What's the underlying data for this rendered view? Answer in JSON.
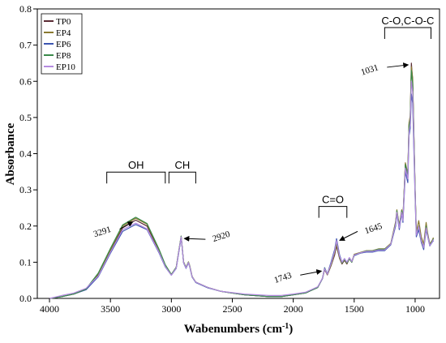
{
  "chart_data": {
    "type": "line",
    "xlabel": "Wabenumbers (cm",
    "xlabel_sup": "-1",
    "xlabel_close": ")",
    "ylabel": "Absorbance",
    "xlim": [
      4100,
      800
    ],
    "ylim": [
      0,
      0.8
    ],
    "x_reversed": true,
    "grid": false,
    "legend_position": "top-left",
    "xticks": [
      4000,
      3500,
      3000,
      2500,
      2000,
      1500,
      1000
    ],
    "yticks": [
      0.0,
      0.1,
      0.2,
      0.3,
      0.4,
      0.5,
      0.6,
      0.7,
      0.8
    ],
    "ytick_labels": [
      "0.0",
      "0.1",
      "0.2",
      "0.3",
      "0.4",
      "0.5",
      "0.6",
      "0.7",
      "0.8"
    ],
    "series": [
      {
        "name": "TP0",
        "color": "#5a2a34",
        "x": [
          4000,
          3900,
          3800,
          3700,
          3600,
          3500,
          3400,
          3300,
          3291,
          3200,
          3100,
          3050,
          3000,
          2960,
          2920,
          2900,
          2880,
          2860,
          2850,
          2830,
          2800,
          2700,
          2600,
          2400,
          2200,
          2100,
          2000,
          1900,
          1800,
          1760,
          1743,
          1720,
          1690,
          1660,
          1645,
          1620,
          1600,
          1580,
          1560,
          1540,
          1520,
          1500,
          1450,
          1400,
          1350,
          1300,
          1250,
          1200,
          1160,
          1150,
          1130,
          1110,
          1100,
          1080,
          1060,
          1050,
          1040,
          1031,
          1020,
          1000,
          990,
          970,
          950,
          930,
          910,
          900,
          880,
          860,
          850
        ],
        "y": [
          0.0,
          0.005,
          0.012,
          0.025,
          0.065,
          0.13,
          0.195,
          0.215,
          0.216,
          0.2,
          0.13,
          0.09,
          0.065,
          0.085,
          0.17,
          0.1,
          0.085,
          0.1,
          0.09,
          0.06,
          0.045,
          0.03,
          0.02,
          0.01,
          0.005,
          0.005,
          0.01,
          0.015,
          0.03,
          0.055,
          0.08,
          0.065,
          0.09,
          0.12,
          0.145,
          0.11,
          0.095,
          0.105,
          0.095,
          0.11,
          0.1,
          0.12,
          0.125,
          0.13,
          0.13,
          0.135,
          0.135,
          0.15,
          0.21,
          0.24,
          0.2,
          0.24,
          0.22,
          0.37,
          0.34,
          0.48,
          0.5,
          0.65,
          0.6,
          0.3,
          0.18,
          0.2,
          0.16,
          0.14,
          0.2,
          0.18,
          0.15,
          0.16,
          0.165
        ]
      },
      {
        "name": "EP4",
        "color": "#8a7a30",
        "x": [
          4000,
          3900,
          3800,
          3700,
          3600,
          3500,
          3400,
          3300,
          3291,
          3200,
          3100,
          3050,
          3000,
          2960,
          2920,
          2900,
          2880,
          2860,
          2850,
          2830,
          2800,
          2700,
          2600,
          2400,
          2200,
          2100,
          2000,
          1900,
          1800,
          1760,
          1743,
          1720,
          1690,
          1660,
          1645,
          1620,
          1600,
          1580,
          1560,
          1540,
          1520,
          1500,
          1450,
          1400,
          1350,
          1300,
          1250,
          1200,
          1160,
          1150,
          1130,
          1110,
          1100,
          1080,
          1060,
          1050,
          1040,
          1031,
          1020,
          1000,
          990,
          970,
          950,
          930,
          910,
          900,
          880,
          860,
          850
        ],
        "y": [
          0.0,
          0.005,
          0.012,
          0.025,
          0.068,
          0.135,
          0.2,
          0.22,
          0.221,
          0.205,
          0.133,
          0.092,
          0.066,
          0.086,
          0.172,
          0.101,
          0.086,
          0.101,
          0.091,
          0.061,
          0.045,
          0.03,
          0.02,
          0.01,
          0.005,
          0.005,
          0.01,
          0.015,
          0.03,
          0.056,
          0.082,
          0.066,
          0.092,
          0.125,
          0.15,
          0.112,
          0.097,
          0.107,
          0.097,
          0.112,
          0.102,
          0.122,
          0.127,
          0.132,
          0.132,
          0.137,
          0.137,
          0.152,
          0.212,
          0.245,
          0.202,
          0.245,
          0.222,
          0.375,
          0.345,
          0.485,
          0.505,
          0.64,
          0.61,
          0.305,
          0.182,
          0.215,
          0.17,
          0.15,
          0.21,
          0.185,
          0.15,
          0.16,
          0.168
        ]
      },
      {
        "name": "EP6",
        "color": "#3c55b0",
        "x": [
          4000,
          3900,
          3800,
          3700,
          3600,
          3500,
          3400,
          3300,
          3291,
          3200,
          3100,
          3050,
          3000,
          2960,
          2920,
          2900,
          2880,
          2860,
          2850,
          2830,
          2800,
          2700,
          2600,
          2400,
          2200,
          2100,
          2000,
          1900,
          1800,
          1760,
          1743,
          1720,
          1690,
          1660,
          1645,
          1620,
          1600,
          1580,
          1560,
          1540,
          1520,
          1500,
          1450,
          1400,
          1350,
          1300,
          1250,
          1200,
          1160,
          1150,
          1130,
          1110,
          1100,
          1080,
          1060,
          1050,
          1040,
          1031,
          1020,
          1000,
          990,
          970,
          950,
          930,
          910,
          900,
          880,
          860,
          850
        ],
        "y": [
          0.0,
          0.005,
          0.012,
          0.024,
          0.06,
          0.125,
          0.185,
          0.203,
          0.204,
          0.19,
          0.125,
          0.087,
          0.064,
          0.083,
          0.168,
          0.098,
          0.083,
          0.098,
          0.088,
          0.059,
          0.044,
          0.029,
          0.02,
          0.01,
          0.005,
          0.005,
          0.01,
          0.015,
          0.03,
          0.055,
          0.085,
          0.068,
          0.1,
          0.135,
          0.165,
          0.12,
          0.1,
          0.11,
          0.1,
          0.112,
          0.102,
          0.118,
          0.125,
          0.128,
          0.128,
          0.132,
          0.132,
          0.148,
          0.2,
          0.235,
          0.19,
          0.235,
          0.21,
          0.35,
          0.32,
          0.45,
          0.47,
          0.565,
          0.54,
          0.28,
          0.17,
          0.19,
          0.155,
          0.135,
          0.19,
          0.175,
          0.145,
          0.155,
          0.16
        ]
      },
      {
        "name": "EP8",
        "color": "#3a8a4a",
        "x": [
          4000,
          3900,
          3800,
          3700,
          3600,
          3500,
          3400,
          3300,
          3291,
          3200,
          3100,
          3050,
          3000,
          2960,
          2920,
          2900,
          2880,
          2860,
          2850,
          2830,
          2800,
          2700,
          2600,
          2400,
          2200,
          2100,
          2000,
          1900,
          1800,
          1760,
          1743,
          1720,
          1690,
          1660,
          1645,
          1620,
          1600,
          1580,
          1560,
          1540,
          1520,
          1500,
          1450,
          1400,
          1350,
          1300,
          1250,
          1200,
          1160,
          1150,
          1130,
          1110,
          1100,
          1080,
          1060,
          1050,
          1040,
          1031,
          1020,
          1000,
          990,
          970,
          950,
          930,
          910,
          900,
          880,
          860,
          850
        ],
        "y": [
          0.0,
          0.005,
          0.012,
          0.026,
          0.07,
          0.138,
          0.203,
          0.223,
          0.224,
          0.207,
          0.135,
          0.093,
          0.066,
          0.086,
          0.172,
          0.1,
          0.086,
          0.1,
          0.09,
          0.06,
          0.045,
          0.03,
          0.02,
          0.01,
          0.005,
          0.005,
          0.01,
          0.015,
          0.03,
          0.056,
          0.083,
          0.067,
          0.095,
          0.13,
          0.158,
          0.115,
          0.098,
          0.108,
          0.098,
          0.11,
          0.1,
          0.12,
          0.126,
          0.131,
          0.131,
          0.136,
          0.136,
          0.15,
          0.208,
          0.242,
          0.198,
          0.242,
          0.218,
          0.37,
          0.34,
          0.475,
          0.495,
          0.63,
          0.595,
          0.3,
          0.178,
          0.2,
          0.16,
          0.14,
          0.2,
          0.18,
          0.148,
          0.158,
          0.165
        ]
      },
      {
        "name": "EP10",
        "color": "#b58be0",
        "x": [
          4000,
          3900,
          3800,
          3700,
          3600,
          3500,
          3400,
          3300,
          3291,
          3200,
          3100,
          3050,
          3000,
          2960,
          2920,
          2900,
          2880,
          2860,
          2850,
          2830,
          2800,
          2700,
          2600,
          2400,
          2200,
          2100,
          2000,
          1900,
          1800,
          1760,
          1743,
          1720,
          1690,
          1660,
          1645,
          1620,
          1600,
          1580,
          1560,
          1540,
          1520,
          1500,
          1450,
          1400,
          1350,
          1300,
          1250,
          1200,
          1160,
          1150,
          1130,
          1110,
          1100,
          1080,
          1060,
          1050,
          1040,
          1031,
          1020,
          1000,
          990,
          970,
          950,
          930,
          910,
          900,
          880,
          860,
          850
        ],
        "y": [
          0.0,
          0.008,
          0.015,
          0.028,
          0.062,
          0.128,
          0.19,
          0.207,
          0.208,
          0.192,
          0.127,
          0.088,
          0.064,
          0.084,
          0.17,
          0.099,
          0.084,
          0.099,
          0.089,
          0.06,
          0.045,
          0.03,
          0.02,
          0.012,
          0.008,
          0.008,
          0.012,
          0.017,
          0.032,
          0.056,
          0.082,
          0.067,
          0.096,
          0.13,
          0.16,
          0.116,
          0.1,
          0.11,
          0.1,
          0.113,
          0.102,
          0.12,
          0.126,
          0.13,
          0.13,
          0.134,
          0.134,
          0.15,
          0.205,
          0.238,
          0.195,
          0.238,
          0.215,
          0.36,
          0.33,
          0.46,
          0.48,
          0.6,
          0.57,
          0.29,
          0.175,
          0.2,
          0.16,
          0.14,
          0.195,
          0.178,
          0.146,
          0.156,
          0.163
        ]
      }
    ],
    "group_labels": [
      {
        "text": "OH",
        "x_from": 3530,
        "x_to": 3050,
        "y": 0.385
      },
      {
        "text": "CH",
        "x_from": 3020,
        "x_to": 2800,
        "y": 0.385
      },
      {
        "text": "C=O",
        "x_from": 1790,
        "x_to": 1560,
        "y": 0.29
      },
      {
        "text": "C-O,C-O-C",
        "x_from": 1250,
        "x_to": 870,
        "y": 0.925
      }
    ],
    "annotations": [
      {
        "text": "3291",
        "peak_x": 3291,
        "peak_y": 0.216
      },
      {
        "text": "2920",
        "peak_x": 2920,
        "peak_y": 0.17
      },
      {
        "text": "1743",
        "peak_x": 1743,
        "peak_y": 0.08
      },
      {
        "text": "1645",
        "peak_x": 1645,
        "peak_y": 0.165
      },
      {
        "text": "1031",
        "peak_x": 1031,
        "peak_y": 0.65
      }
    ]
  }
}
